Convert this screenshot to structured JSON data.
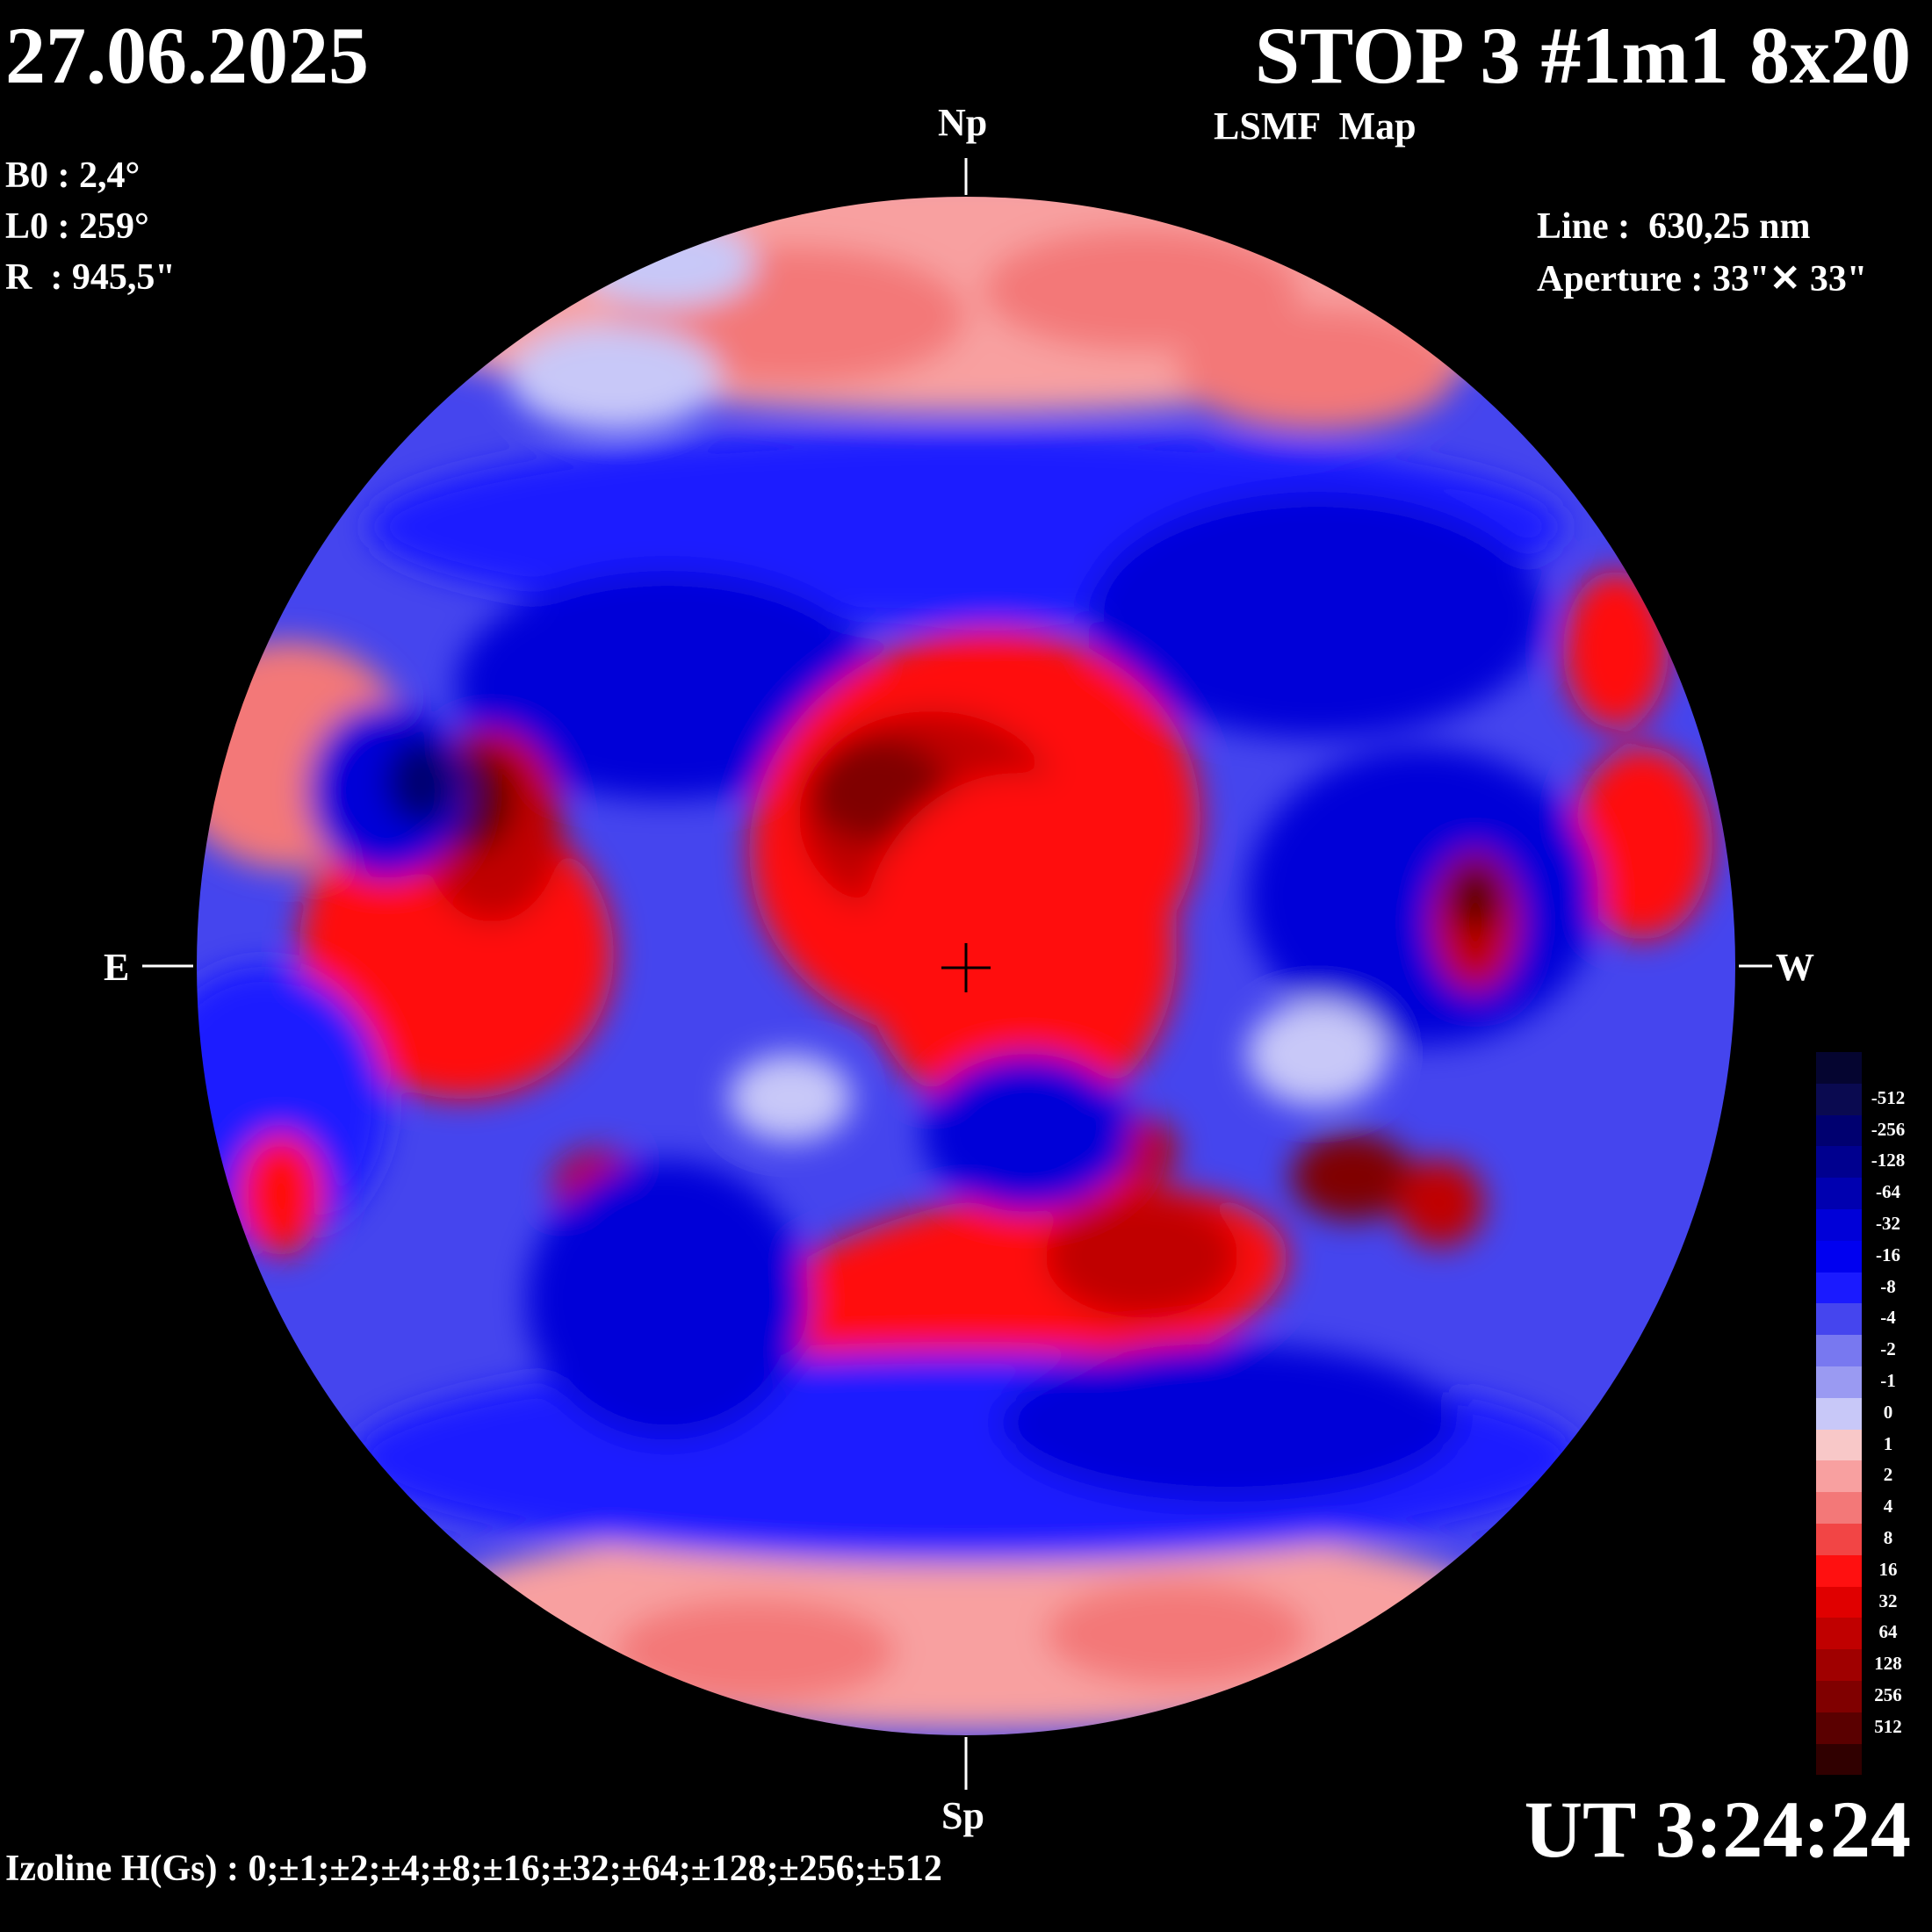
{
  "header": {
    "date": "27.06.2025",
    "title": "STOP 3 #1m1 8x20",
    "subtitle": "LSMF  Map"
  },
  "params": {
    "b0": "B0 : 2,4°",
    "l0": "L0 : 259°",
    "r": "R  : 945,5\""
  },
  "instrument": {
    "line": "Line :  630,25 nm",
    "aperture": "Aperture : 33\"✕ 33\""
  },
  "orientation": {
    "north": "Np",
    "south": "Sp",
    "east": "E",
    "west": "W"
  },
  "time": "UT 3:24:24",
  "izoline": "Izoline H(Gs) : 0;±1;±2;±4;±8;±16;±32;±64;±128;±256;±512",
  "colorbar": {
    "levels": [
      "-512",
      "-256",
      "-128",
      "-64",
      "-32",
      "-16",
      "-8",
      "-4",
      "-2",
      "-1",
      "0",
      "1",
      "2",
      "4",
      "8",
      "16",
      "32",
      "64",
      "128",
      "256",
      "512"
    ],
    "colors": [
      "#050530",
      "#0a0a50",
      "#000070",
      "#00008f",
      "#0000b0",
      "#0000d8",
      "#0000f0",
      "#1a1aff",
      "#4545ee",
      "#7878f0",
      "#9a9af2",
      "#c8c8f8",
      "#f8c8c8",
      "#f8a0a0",
      "#f37878",
      "#f24545",
      "#ff1010",
      "#e00000",
      "#c00000",
      "#a00000",
      "#800000",
      "#5a0000",
      "#300000"
    ]
  },
  "map_legend": {
    "negative_polarity_color": "#1a1aff",
    "positive_polarity_color": "#ff1010",
    "neutral_line_color": "#ffffff",
    "background": "#000000"
  }
}
